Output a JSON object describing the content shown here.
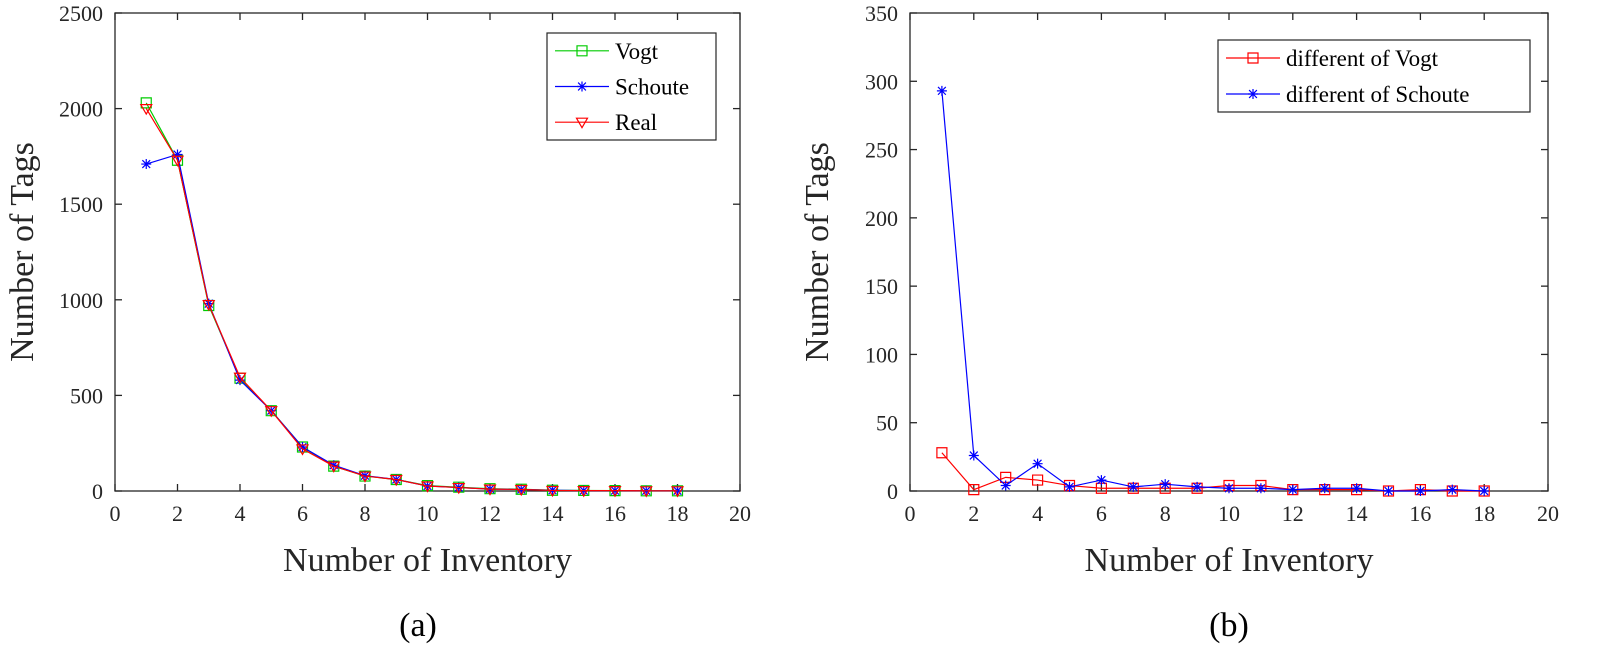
{
  "chart_data": [
    {
      "type": "line",
      "panel_label": "(a)",
      "xlabel": "Number of Inventory",
      "ylabel": "Number of Tags",
      "xlim": [
        0,
        20
      ],
      "ylim": [
        0,
        2500
      ],
      "xticks": [
        0,
        2,
        4,
        6,
        8,
        10,
        12,
        14,
        16,
        18,
        20
      ],
      "yticks": [
        0,
        500,
        1000,
        1500,
        2000,
        2500
      ],
      "grid": false,
      "legend_position": "top-right",
      "x": [
        1,
        2,
        3,
        4,
        5,
        6,
        7,
        8,
        9,
        10,
        11,
        12,
        13,
        14,
        15,
        16,
        17,
        18
      ],
      "series": [
        {
          "name": "Vogt",
          "color": "#00cc00",
          "marker": "square",
          "values": [
            2030,
            1730,
            970,
            590,
            420,
            230,
            130,
            78,
            60,
            28,
            20,
            12,
            9,
            4,
            3,
            2,
            1,
            1
          ]
        },
        {
          "name": "Schoute",
          "color": "#0000ff",
          "marker": "asterisk",
          "values": [
            1710,
            1760,
            980,
            580,
            420,
            230,
            135,
            80,
            60,
            26,
            18,
            10,
            8,
            4,
            2,
            2,
            1,
            1
          ]
        },
        {
          "name": "Real",
          "color": "#ff0000",
          "marker": "triangle-down",
          "values": [
            2000,
            1730,
            975,
            595,
            420,
            220,
            130,
            78,
            60,
            26,
            18,
            10,
            8,
            3,
            2,
            2,
            1,
            1
          ]
        }
      ]
    },
    {
      "type": "line",
      "panel_label": "(b)",
      "xlabel": "Number of Inventory",
      "ylabel": "Number of Tags",
      "xlim": [
        0,
        20
      ],
      "ylim": [
        0,
        350
      ],
      "xticks": [
        0,
        2,
        4,
        6,
        8,
        10,
        12,
        14,
        16,
        18,
        20
      ],
      "yticks": [
        0,
        50,
        100,
        150,
        200,
        250,
        300,
        350
      ],
      "grid": false,
      "legend_position": "top-right",
      "x": [
        1,
        2,
        3,
        4,
        5,
        6,
        7,
        8,
        9,
        10,
        11,
        12,
        13,
        14,
        15,
        16,
        17,
        18
      ],
      "series": [
        {
          "name": "different of Vogt",
          "color": "#ff0000",
          "marker": "square",
          "values": [
            28,
            1,
            10,
            8,
            4,
            2,
            2,
            2,
            2,
            4,
            4,
            1,
            1,
            1,
            0,
            1,
            0,
            0
          ]
        },
        {
          "name": "different of Schoute",
          "color": "#0000ff",
          "marker": "asterisk",
          "values": [
            293,
            26,
            4,
            20,
            3,
            8,
            3,
            5,
            3,
            2,
            2,
            1,
            2,
            2,
            0,
            0,
            1,
            0
          ]
        }
      ]
    }
  ]
}
